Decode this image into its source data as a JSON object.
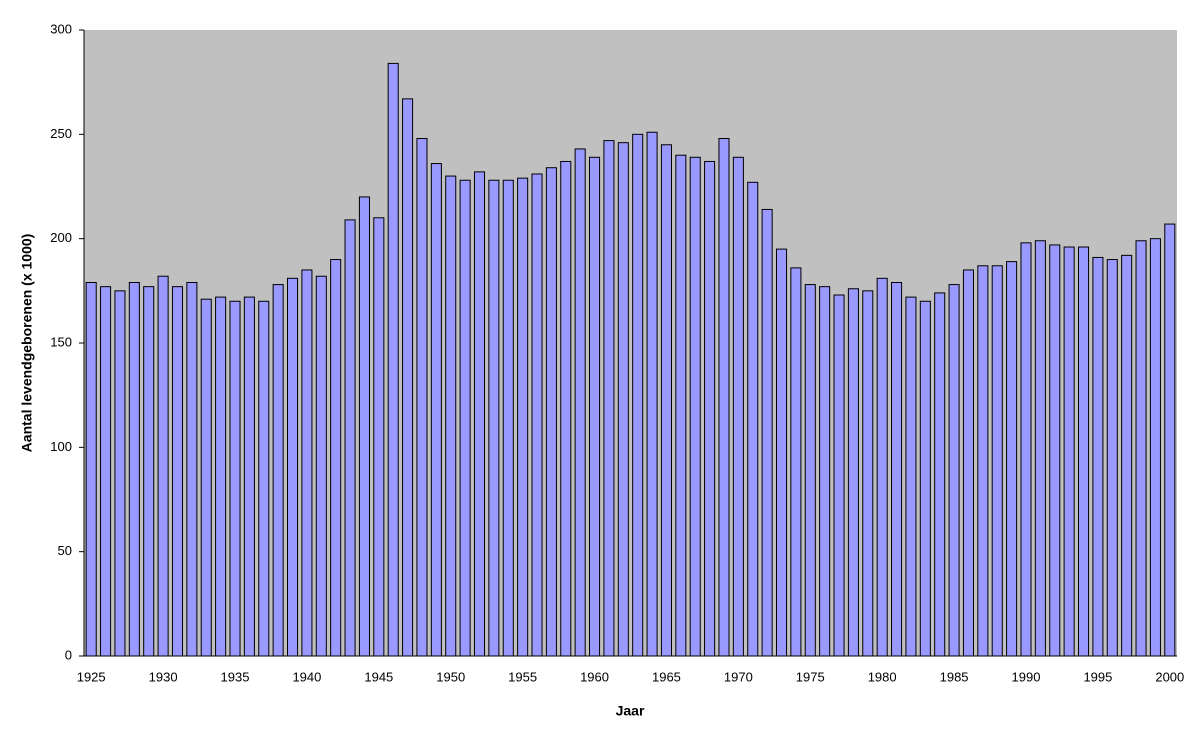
{
  "chart_data": {
    "type": "bar",
    "x_label": "Jaar",
    "y_label": "Aantal levendgeborenen (x 1000)",
    "categories": [
      "1925",
      null,
      null,
      null,
      null,
      "1930",
      null,
      null,
      null,
      null,
      "1935",
      null,
      null,
      null,
      null,
      "1940",
      null,
      null,
      null,
      null,
      "1945",
      null,
      null,
      null,
      null,
      "1950",
      null,
      null,
      null,
      null,
      "1955",
      null,
      null,
      null,
      null,
      "1960",
      null,
      null,
      null,
      null,
      "1965",
      null,
      null,
      null,
      null,
      "1970",
      null,
      null,
      null,
      null,
      "1975",
      null,
      null,
      null,
      null,
      "1980",
      null,
      null,
      null,
      null,
      "1985",
      null,
      null,
      null,
      null,
      "1990",
      null,
      null,
      null,
      null,
      "1995",
      null,
      null,
      null,
      null,
      "2000"
    ],
    "values": [
      179,
      177,
      175,
      179,
      177,
      182,
      177,
      179,
      171,
      172,
      170,
      172,
      170,
      178,
      181,
      185,
      182,
      190,
      209,
      220,
      210,
      284,
      267,
      248,
      236,
      230,
      228,
      232,
      228,
      228,
      229,
      231,
      234,
      237,
      243,
      239,
      247,
      246,
      250,
      251,
      245,
      240,
      239,
      237,
      248,
      239,
      227,
      214,
      195,
      186,
      178,
      177,
      173,
      176,
      175,
      181,
      179,
      172,
      170,
      174,
      178,
      185,
      187,
      187,
      189,
      198,
      199,
      197,
      196,
      196,
      191,
      190,
      192,
      199,
      200,
      207
    ],
    "color": "#9999ff",
    "plot_background": "#c0c0c0",
    "ylim": [
      0,
      300
    ],
    "yticks": [
      0,
      50,
      100,
      150,
      200,
      250,
      300
    ],
    "grid": false
  }
}
